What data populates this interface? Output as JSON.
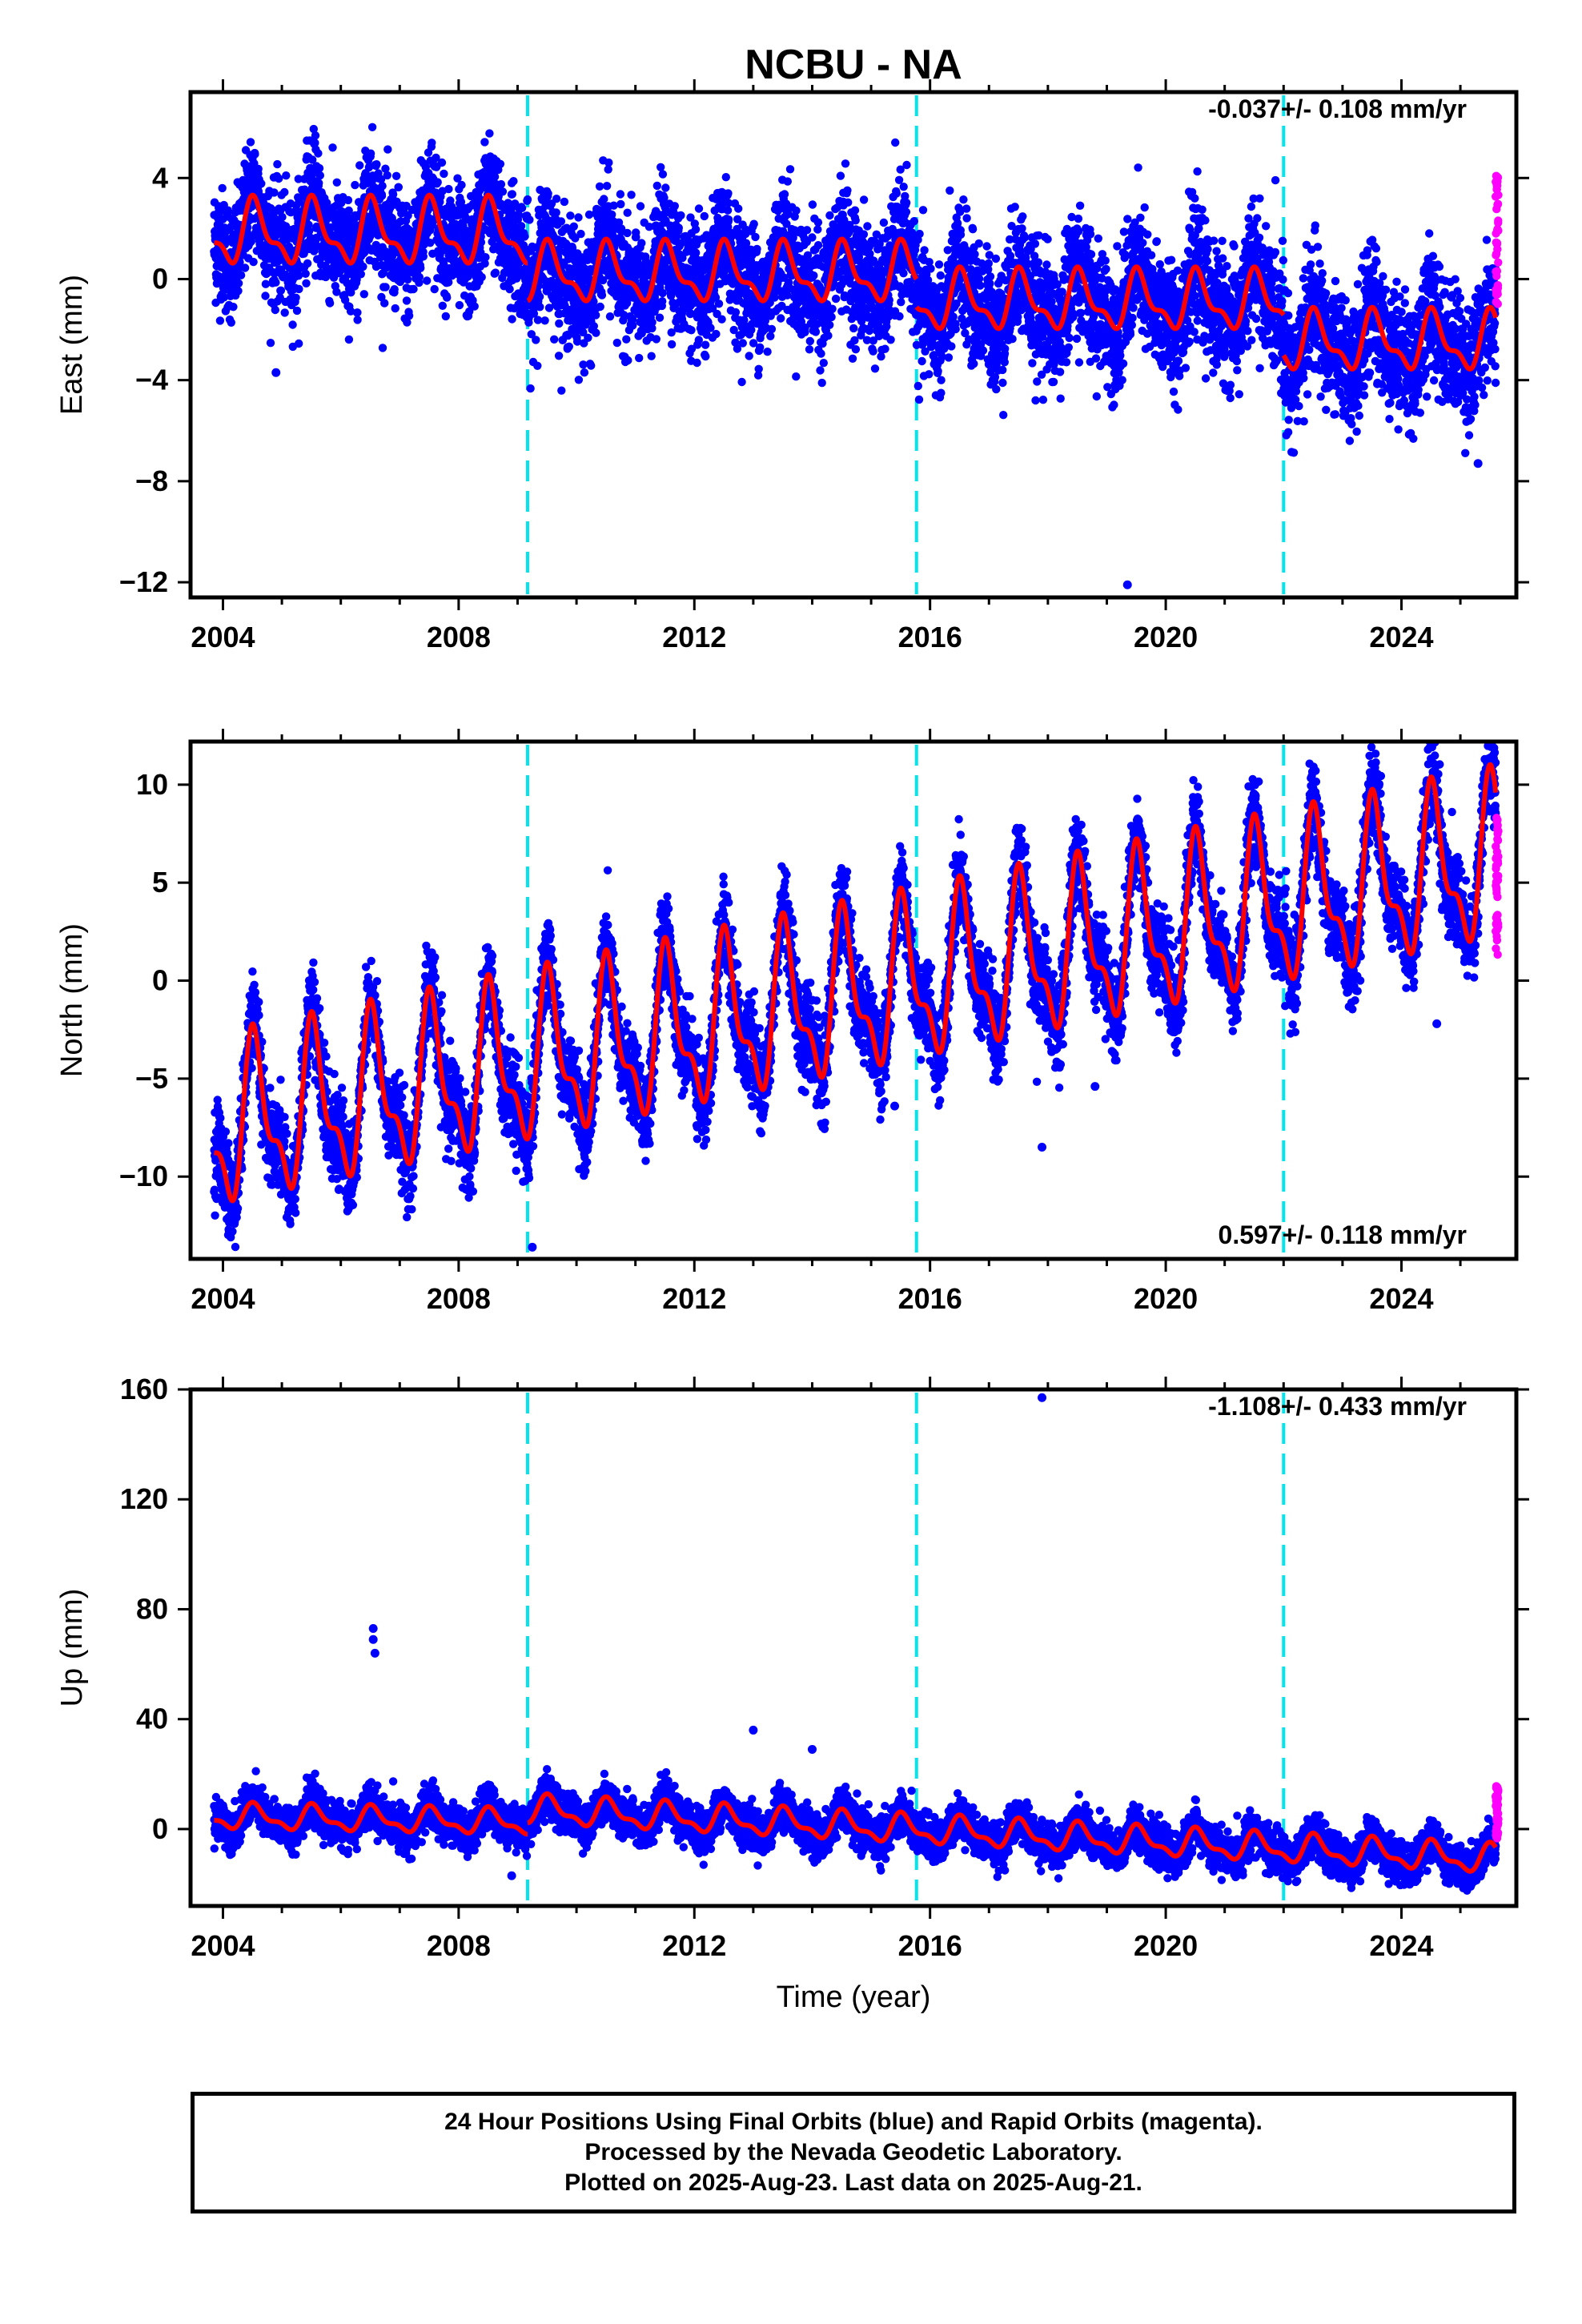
{
  "chart_data": {
    "type": "scatter",
    "title": "NCBU - NA",
    "xlabel": "Time (year)",
    "x_ticks": [
      2004,
      2008,
      2012,
      2016,
      2020,
      2024
    ],
    "xlim": [
      2003.45,
      2025.95
    ],
    "offset_lines": [
      2009.17,
      2015.77,
      2022.0
    ],
    "colors": {
      "final": "#0000ff",
      "rapid": "#ff00ff",
      "model": "#ff0000",
      "offset": "#00e5ee"
    },
    "panels": [
      {
        "name": "east",
        "ylabel": "East (mm)",
        "ylim": [
          -12.6,
          7.4
        ],
        "y_ticks": [
          4,
          0,
          -4,
          -8,
          -12
        ],
        "rate": "-0.037+/- 0.108 mm/yr",
        "segments": [
          {
            "start": 2003.85,
            "end": 2009.17,
            "level": 1.8,
            "amp": 1.1,
            "scatter": 1.15
          },
          {
            "start": 2009.17,
            "end": 2015.77,
            "level": 0.2,
            "amp": 1.0,
            "scatter": 1.2
          },
          {
            "start": 2015.77,
            "end": 2022.0,
            "level": -0.9,
            "amp": 1.0,
            "scatter": 1.2
          },
          {
            "start": 2022.0,
            "end": 2025.6,
            "level": -2.5,
            "amp": 1.0,
            "scatter": 1.2
          }
        ],
        "outliers": [
          [
            2019.35,
            -12.1
          ],
          [
            2004.9,
            -3.7
          ],
          [
            2025.3,
            -7.3
          ]
        ],
        "rapid_range": [
          -1.2,
          4.2
        ]
      },
      {
        "name": "north",
        "ylabel": "North (mm)",
        "ylim": [
          -14.2,
          12.2
        ],
        "y_ticks": [
          10,
          5,
          0,
          -5,
          -10
        ],
        "rate": "0.597+/- 0.118 mm/yr",
        "segments": [
          {
            "start": 2003.85,
            "end": 2025.6,
            "level": -7.6,
            "slope": 0.63,
            "amp": 3.6,
            "scatter": 1.1
          }
        ],
        "outliers": [
          [
            2009.25,
            -13.6
          ],
          [
            2015.4,
            -6.4
          ],
          [
            2017.9,
            -8.5
          ],
          [
            2018.8,
            -5.4
          ],
          [
            2024.6,
            -2.2
          ]
        ],
        "rapid_range": [
          1.3,
          8.4
        ]
      },
      {
        "name": "up",
        "ylabel": "Up (mm)",
        "ylim": [
          -28,
          160
        ],
        "y_ticks": [
          160,
          120,
          80,
          40,
          0
        ],
        "rate": "-1.108+/- 0.433 mm/yr",
        "segments": [
          {
            "start": 2003.85,
            "end": 2009.17,
            "level": 4.5,
            "slope": -0.4,
            "amp": 4.0,
            "scatter": 3.6
          },
          {
            "start": 2009.17,
            "end": 2025.6,
            "level": 7.0,
            "slope": -1.1,
            "amp": 4.5,
            "scatter": 3.6
          }
        ],
        "outliers": [
          [
            2006.55,
            73
          ],
          [
            2006.55,
            69
          ],
          [
            2006.58,
            64
          ],
          [
            2017.9,
            157
          ],
          [
            2013.0,
            36
          ],
          [
            2014.0,
            29
          ],
          [
            2008.9,
            -17
          ]
        ],
        "rapid_range": [
          -4,
          16
        ]
      }
    ]
  },
  "footer": {
    "line1": "24 Hour Positions Using Final Orbits (blue) and Rapid Orbits (magenta).",
    "line2": "Processed by the Nevada Geodetic Laboratory.",
    "line3": "Plotted on 2025-Aug-23. Last data on 2025-Aug-21."
  }
}
